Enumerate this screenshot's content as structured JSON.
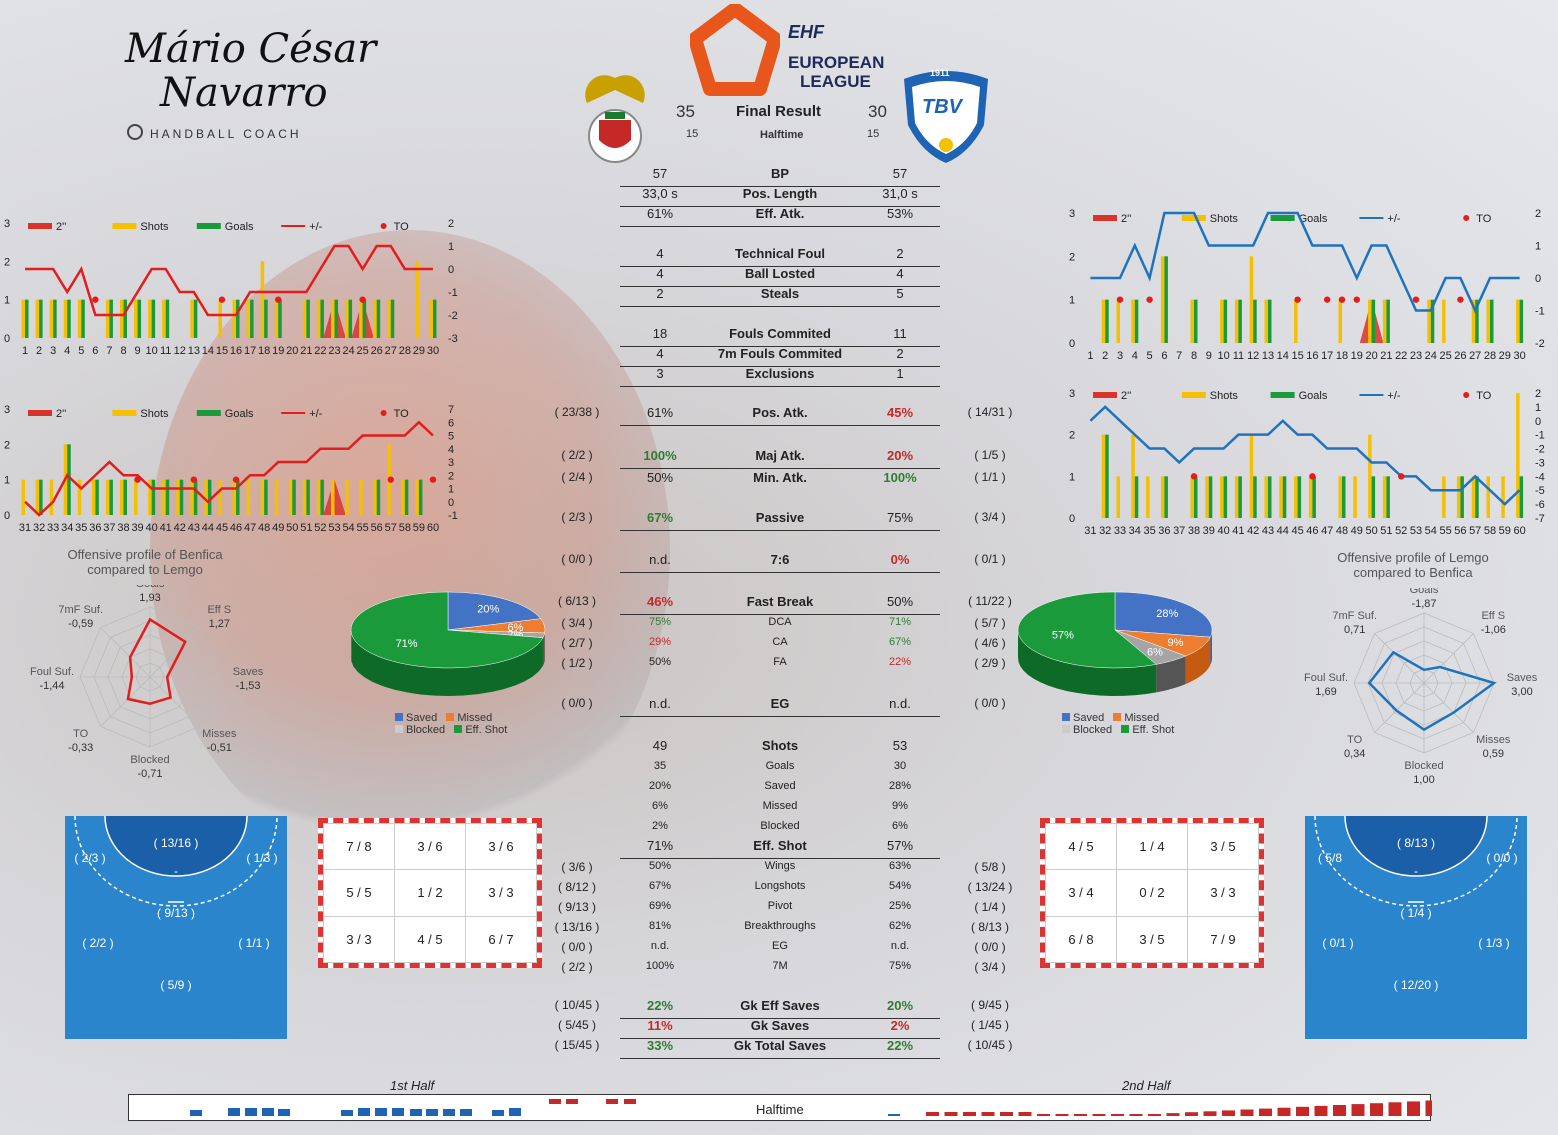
{
  "signature": {
    "line1": "Mário César",
    "line2": "Navarro",
    "coach": "HANDBALL COACH"
  },
  "header": {
    "league_top": "EHF",
    "league_line1": "EUROPEAN",
    "league_line2": "LEAGUE",
    "home_score": "35",
    "away_score": "30",
    "result_label": "Final Result",
    "home_half": "15",
    "away_half": "15",
    "half_label": "Halftime",
    "home_logo_color": "#c62828",
    "away_logo_color": "#1e63b4",
    "away_badge_year": "1911",
    "away_badge": "TBV"
  },
  "stats_top": [
    {
      "label": "BP",
      "home": "57",
      "away": "57"
    },
    {
      "label": "Pos. Length",
      "home": "33,0 s",
      "away": "31,0 s"
    },
    {
      "label": "Eff. Atk.",
      "home": "61%",
      "away": "53%"
    },
    {
      "label": "Technical Foul",
      "home": "4",
      "away": "2"
    },
    {
      "label": "Ball Losted",
      "home": "4",
      "away": "4"
    },
    {
      "label": "Steals",
      "home": "2",
      "away": "5"
    },
    {
      "label": "Fouls Commited",
      "home": "18",
      "away": "11"
    },
    {
      "label": "7m Fouls Commited",
      "home": "4",
      "away": "2"
    },
    {
      "label": "Exclusions",
      "home": "3",
      "away": "1"
    }
  ],
  "attacks": [
    {
      "label": "Pos. Atk.",
      "home": "61%",
      "away": "45%",
      "home_side": "( 23/38 )",
      "away_side": "( 14/31 )"
    },
    {
      "label": "Maj Atk.",
      "home": "100%",
      "away": "20%",
      "home_side": "( 2/2 )",
      "away_side": "( 1/5 )"
    },
    {
      "label": "Min. Atk.",
      "home": "50%",
      "away": "100%",
      "home_side": "( 2/4 )",
      "away_side": "( 1/1 )"
    },
    {
      "label": "Passive",
      "home": "67%",
      "away": "75%",
      "home_side": "( 2/3 )",
      "away_side": "( 3/4 )"
    },
    {
      "label": "7:6",
      "home": "n.d.",
      "away": "0%",
      "home_side": "( 0/0 )",
      "away_side": "( 0/1 )"
    },
    {
      "label": "Fast Break",
      "home": "46%",
      "away": "50%",
      "home_side": "( 6/13 )",
      "away_side": "( 11/22 )"
    },
    {
      "label": "DCA",
      "home": "75%",
      "away": "71%",
      "home_side": "( 3/4 )",
      "away_side": "( 5/7 )"
    },
    {
      "label": "CA",
      "home": "29%",
      "away": "67%",
      "home_side": "( 2/7 )",
      "away_side": "( 4/6 )"
    },
    {
      "label": "FA",
      "home": "50%",
      "away": "22%",
      "home_side": "( 1/2 )",
      "away_side": "( 2/9 )"
    },
    {
      "label": "EG",
      "home": "n.d.",
      "away": "n.d.",
      "home_side": "( 0/0 )",
      "away_side": "( 0/0 )"
    }
  ],
  "shots": [
    {
      "label": "Shots",
      "home": "49",
      "away": "53"
    },
    {
      "label": "Goals",
      "home": "35",
      "away": "30"
    },
    {
      "label": "Saved",
      "home": "20%",
      "away": "28%"
    },
    {
      "label": "Missed",
      "home": "6%",
      "away": "9%"
    },
    {
      "label": "Blocked",
      "home": "2%",
      "away": "6%"
    },
    {
      "label": "Eff. Shot",
      "home": "71%",
      "away": "57%"
    }
  ],
  "positions": [
    {
      "label": "Wings",
      "home": "50%",
      "away": "63%",
      "home_side": "( 3/6 )",
      "away_side": "( 5/8 )"
    },
    {
      "label": "Longshots",
      "home": "67%",
      "away": "54%",
      "home_side": "( 8/12 )",
      "away_side": "( 13/24 )"
    },
    {
      "label": "Pivot",
      "home": "69%",
      "away": "25%",
      "home_side": "( 9/13 )",
      "away_side": "( 1/4 )"
    },
    {
      "label": "Breakthroughs",
      "home": "81%",
      "away": "62%",
      "home_side": "( 13/16 )",
      "away_side": "( 8/13 )"
    },
    {
      "label": "EG",
      "home": "n.d.",
      "away": "n.d.",
      "home_side": "( 0/0 )",
      "away_side": "( 0/0 )"
    },
    {
      "label": "7M",
      "home": "100%",
      "away": "75%",
      "home_side": "( 2/2 )",
      "away_side": "( 3/4 )"
    }
  ],
  "gk": [
    {
      "label": "Gk Eff Saves",
      "home": "22%",
      "away": "20%",
      "home_side": "( 10/45 )",
      "away_side": "( 9/45 )"
    },
    {
      "label": "Gk Saves",
      "home": "11%",
      "away": "2%",
      "home_side": "( 5/45 )",
      "away_side": "( 1/45 )"
    },
    {
      "label": "Gk Total Saves",
      "home": "33%",
      "away": "22%",
      "home_side": "( 15/45 )",
      "away_side": "( 10/45 )"
    }
  ],
  "legend": {
    "twomin": "2''",
    "shots": "Shots",
    "goals": "Goals",
    "pm": "+/-",
    "to": "TO"
  },
  "pie_legend": {
    "saved": "Saved",
    "missed": "Missed",
    "blocked": "Blocked",
    "eff": "Eff. Shot"
  },
  "radar_home": {
    "title1": "Offensive profile of Benfica",
    "title2": "compared to Lemgo"
  },
  "radar_away": {
    "title1": "Offensive profile of Lemgo",
    "title2": "compared to Benfica"
  },
  "goal_home": [
    [
      "7 / 8",
      "3 / 6",
      "3 / 6"
    ],
    [
      "5 / 5",
      "1 / 2",
      "3 / 3"
    ],
    [
      "3 / 3",
      "4 / 5",
      "6 / 7"
    ]
  ],
  "goal_away": [
    [
      "4 / 5",
      "1 / 4",
      "3 / 5"
    ],
    [
      "3 / 4",
      "0 / 2",
      "3 / 3"
    ],
    [
      "6 / 8",
      "3 / 5",
      "7 / 9"
    ]
  ],
  "court_home": {
    "top": "( 13/16 )",
    "dash": "-",
    "left_wing": "( 2/3 )",
    "right_wing": "( 1/3 )",
    "pivot": "( 9/13 )",
    "back_left": "( 2/2 )",
    "back_right": "( 1/1 )",
    "center": "( 5/9 )"
  },
  "court_away": {
    "top": "( 8/13 )",
    "dash": "-",
    "left_wing": "( 5/8",
    "right_wing": "( 0/0 )",
    "pivot": "( 1/4 )",
    "back_left": "( 0/1 )",
    "back_right": "( 1/3 )",
    "center": "( 12/20 )"
  },
  "timeline": {
    "first": "1st Half",
    "second": "2nd Half",
    "center": "Halftime"
  },
  "colors": {
    "shots": "#f5c000",
    "goals": "#1a9a3a",
    "home_line": "#e31c1c",
    "away_line": "#1e73be",
    "to": "#e31c1c"
  },
  "chart_data": [
    {
      "type": "bar",
      "name": "Benfica minutes 1-30",
      "x": [
        1,
        2,
        3,
        4,
        5,
        6,
        7,
        8,
        9,
        10,
        11,
        12,
        13,
        14,
        15,
        16,
        17,
        18,
        19,
        20,
        21,
        22,
        23,
        24,
        25,
        26,
        27,
        28,
        29,
        30
      ],
      "shots": [
        1,
        1,
        1,
        1,
        1,
        0,
        1,
        1,
        1,
        1,
        1,
        0,
        1,
        0,
        1,
        1,
        1,
        2,
        1,
        0,
        1,
        1,
        1,
        1,
        1,
        1,
        1,
        0,
        2,
        1
      ],
      "goals": [
        1,
        1,
        1,
        1,
        1,
        0,
        1,
        1,
        1,
        1,
        1,
        0,
        1,
        0,
        0,
        1,
        1,
        1,
        1,
        0,
        1,
        1,
        1,
        1,
        1,
        1,
        1,
        0,
        0,
        1
      ],
      "pm": [
        0,
        0,
        0,
        -1,
        0,
        -2,
        -2,
        -2,
        -1,
        0,
        0,
        -1,
        -1,
        -2,
        -2,
        -2,
        -1,
        -1,
        -1,
        -1,
        -1,
        0,
        1,
        1,
        0,
        1,
        1,
        0,
        0,
        0
      ],
      "to_minutes": [
        6,
        15,
        19,
        25
      ],
      "twomin_minutes": [
        23,
        25
      ],
      "ylim": [
        0,
        3
      ],
      "y2lim": [
        -3,
        2
      ]
    },
    {
      "type": "bar",
      "name": "Benfica minutes 31-60",
      "x": [
        31,
        32,
        33,
        34,
        35,
        36,
        37,
        38,
        39,
        40,
        41,
        42,
        43,
        44,
        45,
        46,
        47,
        48,
        49,
        50,
        51,
        52,
        53,
        54,
        55,
        56,
        57,
        58,
        59,
        60
      ],
      "shots": [
        1,
        1,
        1,
        2,
        1,
        1,
        1,
        1,
        1,
        1,
        1,
        1,
        1,
        1,
        1,
        1,
        1,
        1,
        1,
        1,
        1,
        1,
        1,
        1,
        1,
        1,
        2,
        1,
        1,
        0
      ],
      "goals": [
        0,
        1,
        0,
        2,
        0,
        1,
        1,
        1,
        0,
        1,
        1,
        1,
        1,
        1,
        0,
        1,
        0,
        1,
        0,
        1,
        1,
        1,
        0,
        0,
        0,
        1,
        0,
        1,
        1,
        0
      ],
      "pm": [
        0,
        -1,
        0,
        2,
        1,
        2,
        3,
        2,
        2,
        1,
        1,
        1,
        1,
        0,
        1,
        1,
        2,
        2,
        3,
        3,
        3,
        4,
        4,
        4,
        5,
        5,
        5,
        5,
        6,
        5
      ],
      "to_minutes": [
        39,
        43,
        46,
        57,
        60
      ],
      "twomin_minutes": [
        53
      ],
      "ylim": [
        0,
        3
      ],
      "y2lim": [
        -1,
        7
      ]
    },
    {
      "type": "bar",
      "name": "Lemgo minutes 1-30",
      "x": [
        1,
        2,
        3,
        4,
        5,
        6,
        7,
        8,
        9,
        10,
        11,
        12,
        13,
        14,
        15,
        16,
        17,
        18,
        19,
        20,
        21,
        22,
        23,
        24,
        25,
        26,
        27,
        28,
        29,
        30
      ],
      "shots": [
        0,
        1,
        1,
        1,
        0,
        2,
        0,
        1,
        0,
        1,
        1,
        2,
        1,
        0,
        1,
        0,
        0,
        1,
        0,
        1,
        1,
        0,
        0,
        1,
        1,
        0,
        1,
        1,
        0,
        1
      ],
      "goals": [
        0,
        1,
        0,
        1,
        0,
        2,
        0,
        1,
        0,
        1,
        1,
        1,
        1,
        0,
        0,
        0,
        0,
        0,
        0,
        1,
        1,
        0,
        0,
        1,
        0,
        0,
        1,
        1,
        0,
        1
      ],
      "pm": [
        0,
        0,
        0,
        1,
        0,
        2,
        2,
        2,
        1,
        1,
        1,
        1,
        2,
        2,
        2,
        1,
        1,
        1,
        0,
        1,
        1,
        0,
        -1,
        -1,
        0,
        0,
        -1,
        0,
        0,
        0
      ],
      "to_minutes": [
        3,
        5,
        15,
        17,
        18,
        19,
        23,
        26
      ],
      "twomin_minutes": [
        20
      ],
      "ylim": [
        0,
        3
      ],
      "y2lim": [
        -2,
        2
      ]
    },
    {
      "type": "bar",
      "name": "Lemgo minutes 31-60",
      "x": [
        31,
        32,
        33,
        34,
        35,
        36,
        37,
        38,
        39,
        40,
        41,
        42,
        43,
        44,
        45,
        46,
        47,
        48,
        49,
        50,
        51,
        52,
        53,
        54,
        55,
        56,
        57,
        58,
        59,
        60
      ],
      "shots": [
        0,
        2,
        1,
        2,
        1,
        1,
        0,
        1,
        1,
        1,
        1,
        2,
        1,
        1,
        1,
        1,
        0,
        1,
        1,
        2,
        1,
        0,
        0,
        0,
        1,
        1,
        1,
        1,
        1,
        3
      ],
      "goals": [
        0,
        2,
        0,
        1,
        0,
        1,
        0,
        1,
        1,
        1,
        1,
        1,
        1,
        1,
        1,
        1,
        0,
        1,
        0,
        1,
        1,
        0,
        0,
        0,
        0,
        1,
        1,
        0,
        0,
        1
      ],
      "pm": [
        0,
        1,
        0,
        -1,
        -2,
        -2,
        -3,
        -2,
        -2,
        -2,
        -1,
        -1,
        -1,
        0,
        -1,
        -1,
        -2,
        -2,
        -2,
        -3,
        -3,
        -4,
        -4,
        -5,
        -5,
        -5,
        -4,
        -5,
        -6,
        -5
      ],
      "to_minutes": [
        38,
        46,
        52
      ],
      "twomin_minutes": [],
      "ylim": [
        0,
        3
      ],
      "y2lim": [
        -7,
        2
      ]
    },
    {
      "type": "pie",
      "name": "Benfica shots",
      "labels": [
        "Saved",
        "Missed",
        "Blocked",
        "Eff. Shot"
      ],
      "values": [
        20,
        6,
        2,
        71
      ]
    },
    {
      "type": "pie",
      "name": "Lemgo shots",
      "labels": [
        "Saved",
        "Missed",
        "Blocked",
        "Eff. Shot"
      ],
      "values": [
        28,
        9,
        6,
        57
      ]
    },
    {
      "type": "radar",
      "name": "Benfica profile",
      "axes": [
        "Goals",
        "Eff S",
        "Saves",
        "Misses",
        "Blocked",
        "TO",
        "Foul Suf.",
        "7mF Suf."
      ],
      "values": [
        1.93,
        1.27,
        -1.53,
        -0.51,
        -0.71,
        -0.33,
        -1.44,
        -0.59
      ],
      "labels": [
        "1,93",
        "1,27",
        "-1,53",
        "-0,51",
        "-0,71",
        "-0,33",
        "-1,44",
        "-0,59"
      ]
    },
    {
      "type": "radar",
      "name": "Lemgo profile",
      "axes": [
        "Goals",
        "Eff S",
        "Saves",
        "Misses",
        "Blocked",
        "TO",
        "Foul Suf.",
        "7mF Suf."
      ],
      "values": [
        -1.87,
        -1.06,
        3.0,
        0.59,
        1.0,
        0.34,
        1.69,
        0.71
      ],
      "labels": [
        "-1,87",
        "-1,06",
        "3,00",
        "0,59",
        "1,00",
        "0,34",
        "1,69",
        "0,71"
      ]
    }
  ]
}
